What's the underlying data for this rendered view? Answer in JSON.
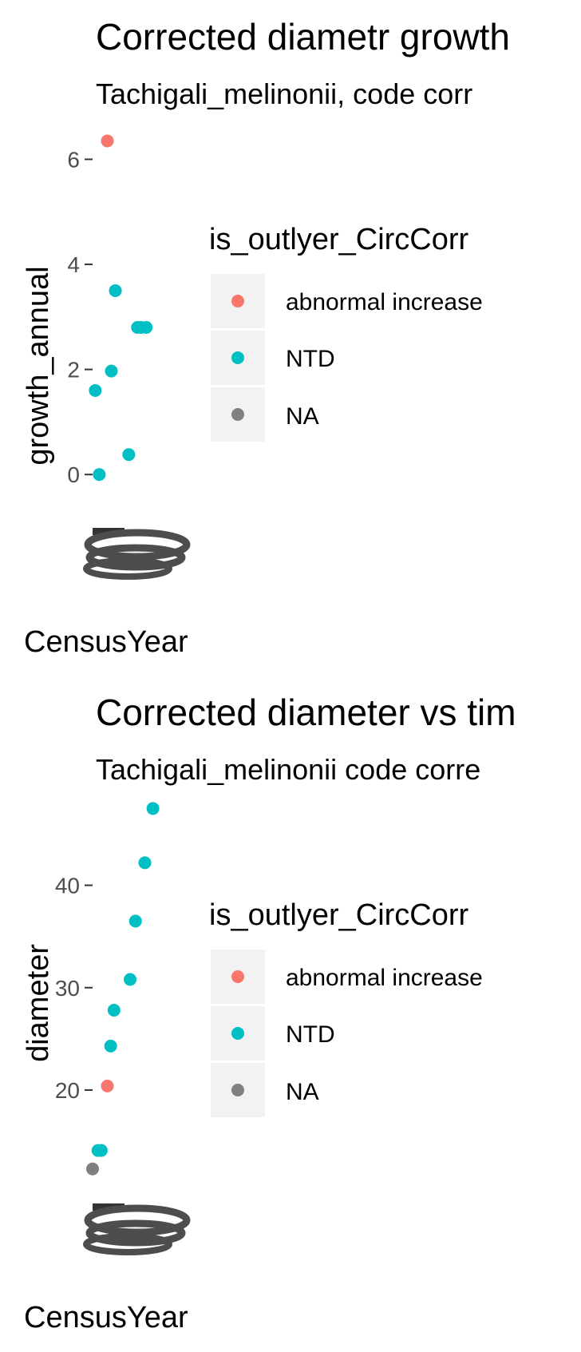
{
  "chart_data": [
    {
      "type": "scatter",
      "title": "Corrected diametr growth",
      "subtitle": "Tachigali_melinonii, code corr",
      "xlabel": "CensusYear",
      "ylabel": "growth_annual",
      "yticks": [
        "0",
        "2",
        "4",
        "6"
      ],
      "ylim": [
        -1.0,
        6.6
      ],
      "legend": {
        "title": "is_outlyer_CircCorr",
        "position": "right",
        "entries": [
          {
            "label": "abnormal increase",
            "color": "#F8766D"
          },
          {
            "label": "NTD",
            "color": "#00BFC4"
          },
          {
            "label": "NA",
            "color": "#808080"
          }
        ]
      },
      "series": [
        {
          "name": "abnormal increase",
          "color": "#F8766D",
          "points": [
            {
              "x": 0.22,
              "y": 6.35
            }
          ]
        },
        {
          "name": "NTD",
          "color": "#00BFC4",
          "points": [
            {
              "x": 0.34,
              "y": 3.5
            },
            {
              "x": 0.67,
              "y": 2.8
            },
            {
              "x": 0.72,
              "y": 2.8
            },
            {
              "x": 0.8,
              "y": 2.8
            },
            {
              "x": 0.28,
              "y": 1.97
            },
            {
              "x": 0.04,
              "y": 1.6
            },
            {
              "x": 0.54,
              "y": 0.38
            },
            {
              "x": 0.1,
              "y": 0.0
            }
          ]
        }
      ]
    },
    {
      "type": "scatter",
      "title": "Corrected diameter vs tim",
      "subtitle": "Tachigali_melinonii code corre",
      "xlabel": "CensusYear",
      "ylabel": "diameter",
      "yticks": [
        "20",
        "30",
        "40"
      ],
      "ylim": [
        9.0,
        48.0
      ],
      "legend": {
        "title": "is_outlyer_CircCorr",
        "position": "right",
        "entries": [
          {
            "label": "abnormal increase",
            "color": "#F8766D"
          },
          {
            "label": "NTD",
            "color": "#00BFC4"
          },
          {
            "label": "NA",
            "color": "#808080"
          }
        ]
      },
      "series": [
        {
          "name": "abnormal increase",
          "color": "#F8766D",
          "points": [
            {
              "x": 0.22,
              "y": 20.4
            }
          ]
        },
        {
          "name": "NTD",
          "color": "#00BFC4",
          "points": [
            {
              "x": 0.9,
              "y": 47.5
            },
            {
              "x": 0.78,
              "y": 42.2
            },
            {
              "x": 0.64,
              "y": 36.5
            },
            {
              "x": 0.56,
              "y": 30.8
            },
            {
              "x": 0.32,
              "y": 27.8
            },
            {
              "x": 0.27,
              "y": 24.3
            },
            {
              "x": 0.08,
              "y": 14.1
            },
            {
              "x": 0.13,
              "y": 14.1
            }
          ]
        },
        {
          "name": "NA",
          "color": "#808080",
          "points": [
            {
              "x": 0.0,
              "y": 12.3
            }
          ]
        }
      ]
    }
  ]
}
